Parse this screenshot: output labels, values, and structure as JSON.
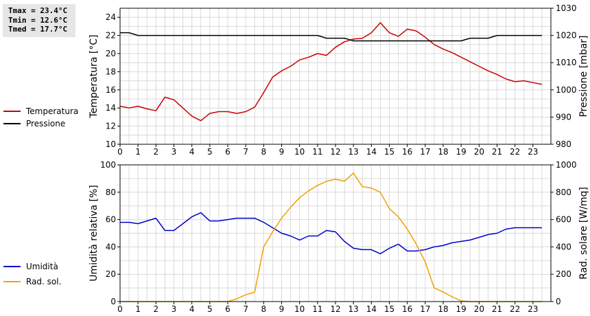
{
  "stats": {
    "tmax": "Tmax = 23.4°C",
    "tmin": "Tmin = 12.6°C",
    "tmed": "Tmed = 17.7°C"
  },
  "chart_data": [
    {
      "type": "line",
      "ylabel": "Temperatura [°C]",
      "y2label": "Pressione [mbar]",
      "xlim": [
        0,
        24
      ],
      "ylim": [
        10,
        25
      ],
      "y2lim": [
        980,
        1030
      ],
      "xticks": [
        "0",
        "1",
        "2",
        "3",
        "4",
        "5",
        "6",
        "7",
        "8",
        "9",
        "10",
        "11",
        "12",
        "13",
        "14",
        "15",
        "16",
        "17",
        "18",
        "19",
        "20",
        "21",
        "22",
        "23"
      ],
      "yticks": [
        "10",
        "12",
        "14",
        "16",
        "18",
        "20",
        "22",
        "24"
      ],
      "y2ticks": [
        "980",
        "990",
        "1000",
        "1010",
        "1020",
        "1030"
      ],
      "grid": true,
      "legend_position": "left",
      "colors": {
        "temperature": "#cc0000",
        "pressure": "#000000"
      },
      "series": [
        {
          "name": "Temperatura",
          "axis": "left",
          "x": [
            0,
            0.5,
            1,
            1.5,
            2,
            2.5,
            3,
            3.5,
            4,
            4.5,
            5,
            5.5,
            6,
            6.5,
            7,
            7.5,
            8,
            8.5,
            9,
            9.5,
            10,
            10.5,
            11,
            11.5,
            12,
            12.5,
            13,
            13.5,
            14,
            14.5,
            15,
            15.5,
            16,
            16.5,
            17,
            17.5,
            18,
            18.5,
            19,
            19.5,
            20,
            20.5,
            21,
            21.5,
            22,
            22.5,
            23,
            23.5
          ],
          "values": [
            14.2,
            14.0,
            14.2,
            13.9,
            13.7,
            15.2,
            14.9,
            14.0,
            13.1,
            12.6,
            13.4,
            13.6,
            13.6,
            13.4,
            13.6,
            14.1,
            15.7,
            17.4,
            18.1,
            18.6,
            19.3,
            19.6,
            20.0,
            19.8,
            20.7,
            21.3,
            21.6,
            21.7,
            22.3,
            23.4,
            22.3,
            21.9,
            22.7,
            22.5,
            21.8,
            21.0,
            20.5,
            20.1,
            19.6,
            19.1,
            18.6,
            18.1,
            17.7,
            17.2,
            16.9,
            17.0,
            16.8,
            16.6
          ]
        },
        {
          "name": "Pressione",
          "axis": "right",
          "x": [
            0,
            0.5,
            1,
            11,
            11.5,
            12.5,
            13,
            19,
            19.5,
            20.5,
            21,
            23.5
          ],
          "values": [
            1021,
            1021,
            1020,
            1020,
            1019,
            1019,
            1018,
            1018,
            1019,
            1019,
            1020,
            1020
          ]
        }
      ]
    },
    {
      "type": "line",
      "ylabel": "Umidità relativa [%]",
      "y2label": "Rad. solare [W/mq]",
      "xlim": [
        0,
        24
      ],
      "ylim": [
        0,
        100
      ],
      "y2lim": [
        0,
        1000
      ],
      "xticks": [
        "0",
        "1",
        "2",
        "3",
        "4",
        "5",
        "6",
        "7",
        "8",
        "9",
        "10",
        "11",
        "12",
        "13",
        "14",
        "15",
        "16",
        "17",
        "18",
        "19",
        "20",
        "21",
        "22",
        "23"
      ],
      "yticks": [
        "0",
        "20",
        "40",
        "60",
        "80",
        "100"
      ],
      "y2ticks": [
        "0",
        "200",
        "400",
        "600",
        "800",
        "1000"
      ],
      "grid": true,
      "legend_position": "left",
      "colors": {
        "humidity": "#0000cc",
        "radiation": "#f0a000"
      },
      "series": [
        {
          "name": "Umidità",
          "axis": "left",
          "x": [
            0,
            0.5,
            1,
            1.5,
            2,
            2.5,
            3,
            3.5,
            4,
            4.5,
            5,
            5.5,
            6,
            6.5,
            7,
            7.5,
            8,
            8.5,
            9,
            9.5,
            10,
            10.5,
            11,
            11.5,
            12,
            12.5,
            13,
            13.5,
            14,
            14.5,
            15,
            15.5,
            16,
            16.5,
            17,
            17.5,
            18,
            18.5,
            19,
            19.5,
            20,
            20.5,
            21,
            21.5,
            22,
            22.5,
            23,
            23.5
          ],
          "values": [
            58,
            58,
            57,
            59,
            61,
            52,
            52,
            57,
            62,
            65,
            59,
            59,
            60,
            61,
            61,
            61,
            58,
            54,
            50,
            48,
            45,
            48,
            48,
            52,
            51,
            44,
            39,
            38,
            38,
            35,
            39,
            42,
            37,
            37,
            38,
            40,
            41,
            43,
            44,
            45,
            47,
            49,
            50,
            53,
            54,
            54,
            54,
            54
          ]
        },
        {
          "name": "Rad. sol.",
          "axis": "right",
          "x": [
            0,
            0.5,
            1,
            1.5,
            2,
            2.5,
            3,
            3.5,
            4,
            4.5,
            5,
            5.5,
            6,
            6.5,
            7,
            7.5,
            8,
            8.5,
            9,
            9.5,
            10,
            10.5,
            11,
            11.5,
            12,
            12.5,
            13,
            13.5,
            14,
            14.5,
            15,
            15.5,
            16,
            16.5,
            17,
            17.5,
            18,
            18.5,
            19,
            19.5,
            20,
            20.5,
            21,
            21.5,
            22,
            22.5,
            23,
            23.5
          ],
          "values": [
            0,
            0,
            0,
            0,
            0,
            0,
            0,
            0,
            0,
            0,
            0,
            0,
            0,
            20,
            50,
            70,
            400,
            510,
            610,
            690,
            760,
            810,
            850,
            880,
            895,
            880,
            940,
            840,
            830,
            800,
            680,
            620,
            530,
            420,
            290,
            100,
            70,
            35,
            5,
            0,
            0,
            0,
            0,
            0,
            0,
            0,
            0,
            0
          ]
        }
      ]
    }
  ]
}
